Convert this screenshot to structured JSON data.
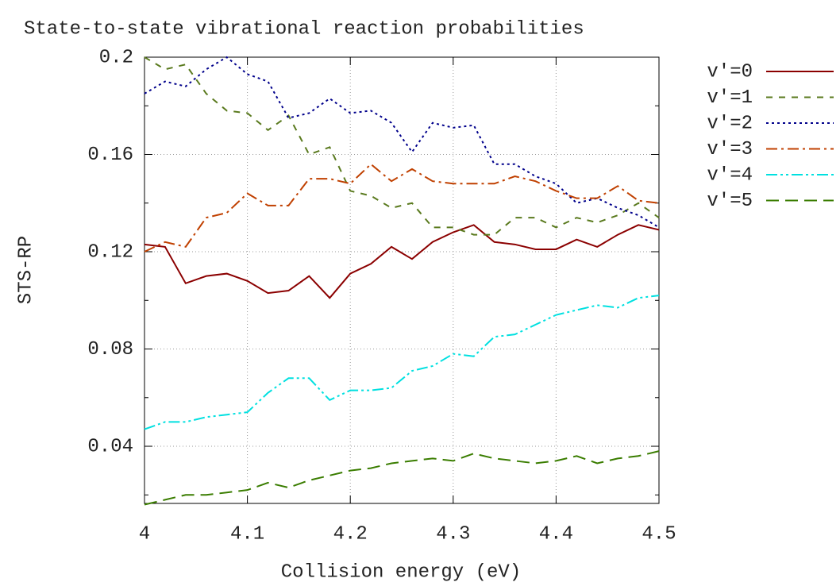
{
  "chart_data": {
    "type": "line",
    "title": "State-to-state vibrational reaction probabilities",
    "xlabel": "Collision energy (eV)",
    "ylabel": "STS-RP",
    "x": [
      4.0,
      4.02,
      4.04,
      4.06,
      4.08,
      4.1,
      4.12,
      4.14,
      4.16,
      4.18,
      4.2,
      4.22,
      4.24,
      4.26,
      4.28,
      4.3,
      4.32,
      4.34,
      4.36,
      4.38,
      4.4,
      4.42,
      4.44,
      4.46,
      4.48,
      4.5
    ],
    "series": [
      {
        "name": "v′=0",
        "color": "#8b0000",
        "dash": "",
        "values": [
          0.123,
          0.122,
          0.107,
          0.11,
          0.111,
          0.108,
          0.103,
          0.104,
          0.11,
          0.101,
          0.111,
          0.115,
          0.122,
          0.117,
          0.124,
          0.128,
          0.131,
          0.124,
          0.123,
          0.121,
          0.121,
          0.125,
          0.122,
          0.127,
          0.131,
          0.129
        ]
      },
      {
        "name": "v′=1",
        "color": "#5a7a1e",
        "dash": "8,8",
        "values": [
          0.2,
          0.195,
          0.197,
          0.185,
          0.178,
          0.177,
          0.17,
          0.176,
          0.16,
          0.163,
          0.145,
          0.143,
          0.138,
          0.14,
          0.13,
          0.13,
          0.127,
          0.127,
          0.134,
          0.134,
          0.13,
          0.134,
          0.132,
          0.135,
          0.14,
          0.134
        ]
      },
      {
        "name": "v′=2",
        "color": "#00008b",
        "dash": "3,4",
        "values": [
          0.185,
          0.19,
          0.188,
          0.195,
          0.2,
          0.193,
          0.19,
          0.175,
          0.177,
          0.183,
          0.177,
          0.178,
          0.173,
          0.161,
          0.173,
          0.171,
          0.172,
          0.156,
          0.156,
          0.151,
          0.148,
          0.14,
          0.142,
          0.138,
          0.135,
          0.13
        ]
      },
      {
        "name": "v′=3",
        "color": "#c04000",
        "dash": "14,5,3,5",
        "values": [
          0.12,
          0.124,
          0.122,
          0.134,
          0.136,
          0.144,
          0.139,
          0.139,
          0.15,
          0.15,
          0.148,
          0.156,
          0.149,
          0.154,
          0.149,
          0.148,
          0.148,
          0.148,
          0.151,
          0.149,
          0.145,
          0.142,
          0.142,
          0.147,
          0.141,
          0.14
        ]
      },
      {
        "name": "v′=4",
        "color": "#00e0e0",
        "dash": "14,4,3,4,3,4",
        "values": [
          0.047,
          0.05,
          0.05,
          0.052,
          0.053,
          0.054,
          0.062,
          0.068,
          0.068,
          0.059,
          0.063,
          0.063,
          0.064,
          0.071,
          0.073,
          0.078,
          0.077,
          0.085,
          0.086,
          0.09,
          0.094,
          0.096,
          0.098,
          0.097,
          0.101,
          0.102
        ]
      },
      {
        "name": "v′=5",
        "color": "#3a7d00",
        "dash": "16,8",
        "values": [
          0.016,
          0.018,
          0.02,
          0.02,
          0.021,
          0.022,
          0.025,
          0.023,
          0.026,
          0.028,
          0.03,
          0.031,
          0.033,
          0.034,
          0.035,
          0.034,
          0.037,
          0.035,
          0.034,
          0.033,
          0.034,
          0.036,
          0.033,
          0.035,
          0.036,
          0.038
        ]
      }
    ],
    "xlim": [
      4.0,
      4.5
    ],
    "xticks": [
      4,
      4.1,
      4.2,
      4.3,
      4.4,
      4.5
    ],
    "ylim": [
      0.0165,
      0.2
    ],
    "yticks": [
      0.04,
      0.08,
      0.12,
      0.16,
      0.2
    ],
    "yminorticks": [
      0.02,
      0.06,
      0.1,
      0.14,
      0.18
    ],
    "grid": true,
    "legend": "outside-right"
  }
}
